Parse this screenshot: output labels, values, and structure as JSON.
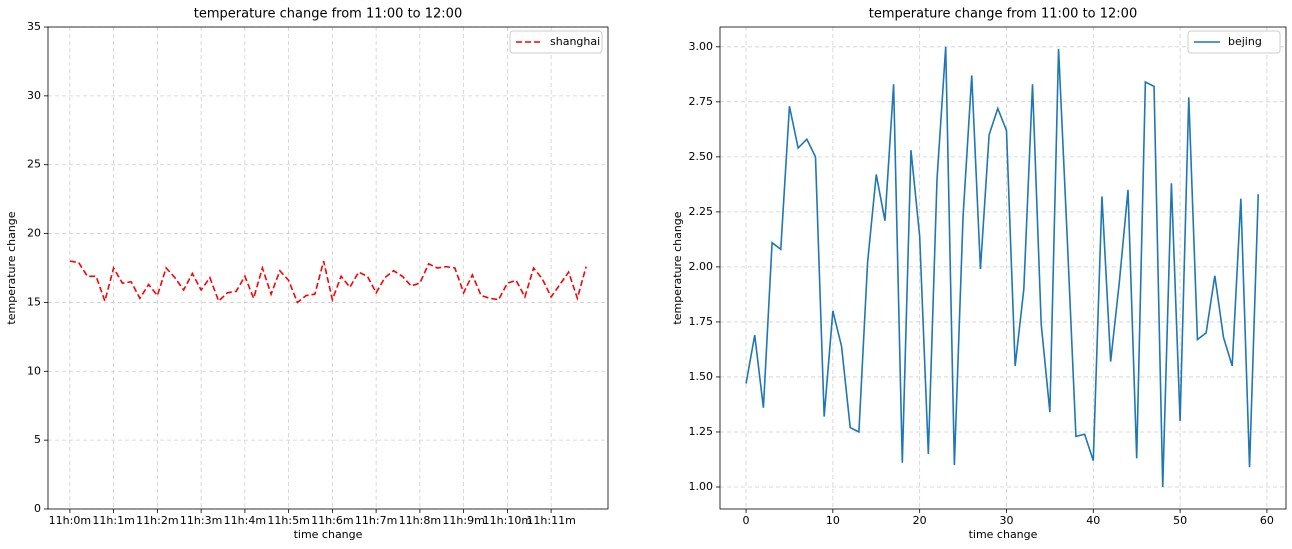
{
  "chart_data": [
    {
      "type": "line",
      "title": "temperature change from 11:00 to 12:00",
      "x_label": "time change",
      "y_label": "temperature change",
      "categories": [
        "11h:0m",
        null,
        null,
        null,
        null,
        "11h:1m",
        null,
        null,
        null,
        null,
        "11h:2m",
        null,
        null,
        null,
        null,
        "11h:3m",
        null,
        null,
        null,
        null,
        "11h:4m",
        null,
        null,
        null,
        null,
        "11h:5m",
        null,
        null,
        null,
        null,
        "11h:6m",
        null,
        null,
        null,
        null,
        "11h:7m",
        null,
        null,
        null,
        null,
        "11h:8m",
        null,
        null,
        null,
        null,
        "11h:9m",
        null,
        null,
        null,
        null,
        "11h:10m",
        null,
        null,
        null,
        null,
        "11h:11m",
        null,
        null,
        null,
        null
      ],
      "series": [
        {
          "name": "shanghai",
          "color": "#ff0000",
          "dashed": true,
          "values": [
            18.0,
            17.9,
            16.9,
            16.9,
            15.1,
            17.5,
            16.4,
            16.5,
            15.3,
            16.3,
            15.5,
            17.5,
            16.8,
            15.9,
            17.1,
            15.9,
            16.8,
            15.1,
            15.7,
            15.8,
            16.9,
            15.3,
            17.5,
            15.6,
            17.3,
            16.6,
            15.0,
            15.5,
            15.6,
            18.0,
            15.2,
            16.9,
            16.1,
            17.2,
            16.9,
            15.7,
            16.8,
            17.3,
            16.9,
            16.2,
            16.4,
            17.8,
            17.5,
            17.6,
            17.5,
            15.7,
            17.0,
            15.5,
            15.3,
            15.2,
            16.4,
            16.6,
            15.4,
            17.5,
            16.7,
            15.4,
            16.3,
            17.2,
            15.3,
            17.6
          ]
        }
      ],
      "ylim": [
        0,
        35
      ],
      "yticks": [
        0,
        5,
        10,
        15,
        20,
        25,
        30,
        35
      ],
      "grid": true,
      "legend": "upper right"
    },
    {
      "type": "line",
      "title": "temperature change from 11:00 to 12:00",
      "x_label": "time change",
      "y_label": "temperature change",
      "x": [
        0,
        1,
        2,
        3,
        4,
        5,
        6,
        7,
        8,
        9,
        10,
        11,
        12,
        13,
        14,
        15,
        16,
        17,
        18,
        19,
        20,
        21,
        22,
        23,
        24,
        25,
        26,
        27,
        28,
        29,
        30,
        31,
        32,
        33,
        34,
        35,
        36,
        37,
        38,
        39,
        40,
        41,
        42,
        43,
        44,
        45,
        46,
        47,
        48,
        49,
        50,
        51,
        52,
        53,
        54,
        55,
        56,
        57,
        58,
        59
      ],
      "series": [
        {
          "name": "bejing",
          "color": "#1f77b4",
          "dashed": false,
          "values": [
            1.47,
            1.69,
            1.36,
            2.11,
            2.08,
            2.73,
            2.54,
            2.58,
            2.5,
            1.32,
            1.8,
            1.64,
            1.27,
            1.25,
            2.02,
            2.42,
            2.21,
            2.83,
            1.11,
            2.53,
            2.14,
            1.15,
            2.4,
            3.0,
            1.1,
            2.23,
            2.87,
            1.99,
            2.6,
            2.72,
            2.62,
            1.55,
            1.9,
            2.83,
            1.74,
            1.34,
            2.99,
            2.13,
            1.23,
            1.24,
            1.12,
            2.32,
            1.57,
            1.93,
            2.35,
            1.13,
            2.84,
            2.82,
            1.0,
            2.38,
            1.3,
            2.77,
            1.67,
            1.7,
            1.96,
            1.68,
            1.55,
            2.31,
            1.09,
            2.33
          ]
        }
      ],
      "xlim": [
        -3.0,
        62.2
      ],
      "xticks": [
        0,
        10,
        20,
        30,
        40,
        50,
        60
      ],
      "ylim": [
        0.9,
        3.09
      ],
      "yticks": [
        {
          "value": 1.0,
          "label": "1.00"
        },
        {
          "value": 1.25,
          "label": "1.25"
        },
        {
          "value": 1.5,
          "label": "1.50"
        },
        {
          "value": 1.75,
          "label": "1.75"
        },
        {
          "value": 2.0,
          "label": "2.00"
        },
        {
          "value": 2.25,
          "label": "2.25"
        },
        {
          "value": 2.5,
          "label": "2.50"
        },
        {
          "value": 2.75,
          "label": "2.75"
        },
        {
          "value": 3.0,
          "label": "3.00"
        }
      ],
      "grid": true,
      "legend": "upper right"
    }
  ]
}
